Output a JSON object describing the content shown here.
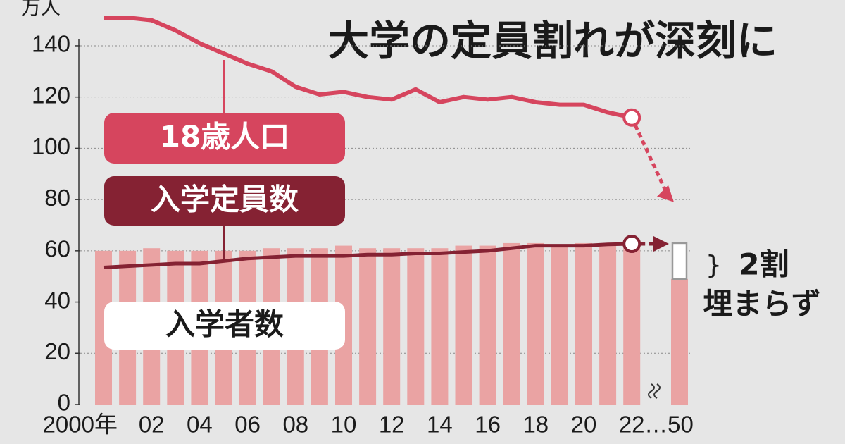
{
  "chart_data": {
    "type": "bar-line",
    "title": "大学の定員割れが深刻に",
    "unit_label": "万人",
    "categories": [
      "2000年",
      null,
      "02",
      null,
      "04",
      null,
      "06",
      null,
      "08",
      null,
      "10",
      null,
      "12",
      null,
      "14",
      null,
      "16",
      null,
      "18",
      null,
      "20",
      null,
      "22",
      "…50"
    ],
    "series": [
      {
        "name": "入学者数",
        "kind": "bar",
        "color": "#eaa3a3",
        "values": [
          60,
          60,
          61,
          60,
          60,
          60,
          60,
          61,
          61,
          61,
          62,
          61,
          61,
          61,
          61,
          62,
          62,
          63,
          63,
          62,
          63,
          63,
          63,
          49
        ]
      },
      {
        "name": "18歳人口",
        "kind": "line",
        "color": "#d6455e",
        "values": [
          151,
          151,
          150,
          146,
          141,
          137,
          133,
          130,
          124,
          121,
          122,
          120,
          119,
          123,
          118,
          120,
          119,
          120,
          118,
          117,
          117,
          114,
          112,
          79
        ]
      },
      {
        "name": "入学定員数",
        "kind": "line",
        "color": "#852233",
        "values": [
          53.5,
          54,
          54.5,
          55,
          55,
          56,
          57,
          57.5,
          58,
          58,
          58,
          58.5,
          58.5,
          59,
          59,
          59.5,
          60,
          61,
          62,
          62,
          62,
          62.5,
          62.7,
          63
        ]
      }
    ],
    "annotation": [
      "2割",
      "埋まらず"
    ],
    "ylim": [
      0,
      155
    ],
    "yticks": [
      0,
      20,
      40,
      60,
      80,
      100,
      120,
      140
    ],
    "grid": true
  }
}
